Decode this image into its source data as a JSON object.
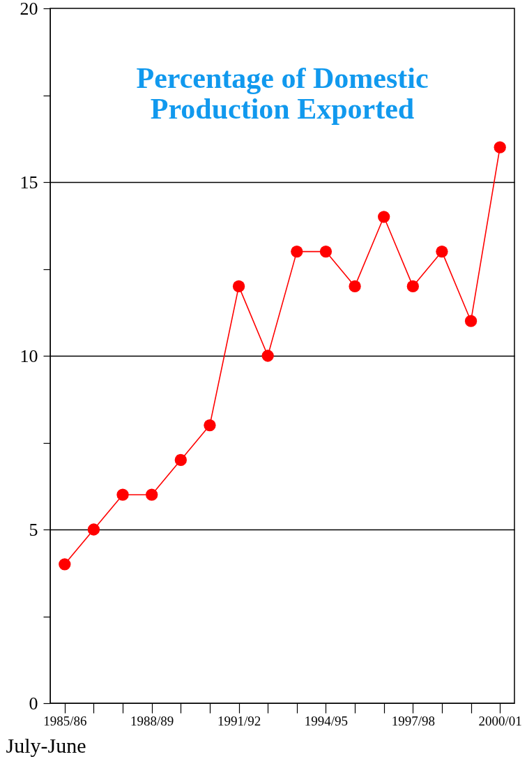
{
  "chart_data": {
    "type": "line",
    "title": "Percentage of Domestic Production Exported",
    "xlabel": "July-June",
    "categories": [
      "1985/86",
      null,
      null,
      "1988/89",
      null,
      null,
      "1991/92",
      null,
      null,
      "1994/95",
      null,
      null,
      "1997/98",
      null,
      null,
      "2000/01"
    ],
    "series": [
      {
        "color": "#ff0000",
        "values": [
          4,
          5,
          6,
          6,
          7,
          8,
          12,
          10,
          13,
          13,
          12,
          14,
          12,
          13,
          11,
          16
        ]
      }
    ],
    "ylim": [
      0,
      20
    ],
    "yticks": [
      0,
      {
        "value": 2.5,
        "label": null
      },
      5,
      {
        "value": 7.5,
        "label": null
      },
      10,
      {
        "value": 12.5,
        "label": null
      },
      15,
      {
        "value": 17.5,
        "label": null
      },
      20
    ],
    "grid": "y",
    "marker": "circle",
    "line_style": "solid"
  }
}
